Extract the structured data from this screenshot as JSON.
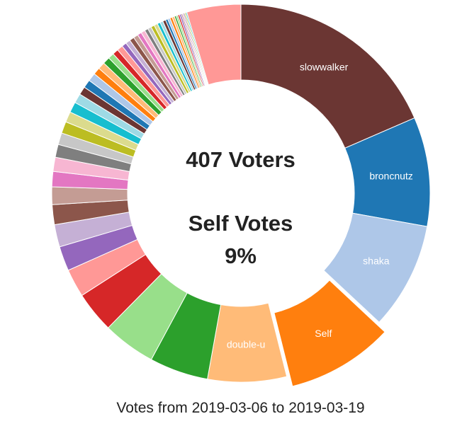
{
  "center": {
    "voters": "407 Voters",
    "self_votes_label": "Self Votes",
    "self_votes_pct": "9%"
  },
  "caption": "Votes from 2019-03-06 to 2019-03-19",
  "chart_data": {
    "type": "pie",
    "style": "donut",
    "exploded_slice": "Self",
    "slices": [
      {
        "label": "slowwalker",
        "value": 18.4,
        "color": "#6b3633"
      },
      {
        "label": "broncnutz",
        "value": 9.3,
        "color": "#1f77b4"
      },
      {
        "label": "shaka",
        "value": 9.1,
        "color": "#aec7e8"
      },
      {
        "label": "Self",
        "value": 9.1,
        "color": "#ff7f0e"
      },
      {
        "label": "double-u",
        "value": 6.7,
        "color": "#ffbb78"
      },
      {
        "label": "",
        "value": 5.0,
        "color": "#2ca02c"
      },
      {
        "label": "",
        "value": 4.5,
        "color": "#98df8a"
      },
      {
        "label": "",
        "value": 3.5,
        "color": "#d62728"
      },
      {
        "label": "",
        "value": 2.4,
        "color": "#ff9896"
      },
      {
        "label": "",
        "value": 2.1,
        "color": "#9467bd"
      },
      {
        "label": "",
        "value": 1.9,
        "color": "#c5b0d5"
      },
      {
        "label": "",
        "value": 1.7,
        "color": "#8c564b"
      },
      {
        "label": "",
        "value": 1.5,
        "color": "#c49c94"
      },
      {
        "label": "",
        "value": 1.3,
        "color": "#e377c2"
      },
      {
        "label": "",
        "value": 1.2,
        "color": "#f7b6d2"
      },
      {
        "label": "",
        "value": 1.1,
        "color": "#7f7f7f"
      },
      {
        "label": "",
        "value": 1.0,
        "color": "#c7c7c7"
      },
      {
        "label": "",
        "value": 1.0,
        "color": "#bcbd22"
      },
      {
        "label": "",
        "value": 0.9,
        "color": "#dbdb8d"
      },
      {
        "label": "",
        "value": 0.9,
        "color": "#17becf"
      },
      {
        "label": "",
        "value": 0.8,
        "color": "#9edae5"
      },
      {
        "label": "",
        "value": 0.7,
        "color": "#6b3633"
      },
      {
        "label": "",
        "value": 0.7,
        "color": "#1f77b4"
      },
      {
        "label": "",
        "value": 0.7,
        "color": "#aec7e8"
      },
      {
        "label": "",
        "value": 0.6,
        "color": "#ff7f0e"
      },
      {
        "label": "",
        "value": 0.6,
        "color": "#ffbb78"
      },
      {
        "label": "",
        "value": 0.6,
        "color": "#2ca02c"
      },
      {
        "label": "",
        "value": 0.5,
        "color": "#98df8a"
      },
      {
        "label": "",
        "value": 0.5,
        "color": "#d62728"
      },
      {
        "label": "",
        "value": 0.5,
        "color": "#ff9896"
      },
      {
        "label": "",
        "value": 0.4,
        "color": "#9467bd"
      },
      {
        "label": "",
        "value": 0.4,
        "color": "#c5b0d5"
      },
      {
        "label": "",
        "value": 0.4,
        "color": "#8c564b"
      },
      {
        "label": "",
        "value": 0.4,
        "color": "#c49c94"
      },
      {
        "label": "",
        "value": 0.35,
        "color": "#e377c2"
      },
      {
        "label": "",
        "value": 0.35,
        "color": "#f7b6d2"
      },
      {
        "label": "",
        "value": 0.3,
        "color": "#7f7f7f"
      },
      {
        "label": "",
        "value": 0.3,
        "color": "#c7c7c7"
      },
      {
        "label": "",
        "value": 0.3,
        "color": "#bcbd22"
      },
      {
        "label": "",
        "value": 0.3,
        "color": "#dbdb8d"
      },
      {
        "label": "",
        "value": 0.25,
        "color": "#17becf"
      },
      {
        "label": "",
        "value": 0.25,
        "color": "#9edae5"
      },
      {
        "label": "",
        "value": 0.25,
        "color": "#6b3633"
      },
      {
        "label": "",
        "value": 0.2,
        "color": "#1f77b4"
      },
      {
        "label": "",
        "value": 0.2,
        "color": "#aec7e8"
      },
      {
        "label": "",
        "value": 0.2,
        "color": "#ff7f0e"
      },
      {
        "label": "",
        "value": 0.2,
        "color": "#ffbb78"
      },
      {
        "label": "",
        "value": 0.15,
        "color": "#2ca02c"
      },
      {
        "label": "",
        "value": 0.15,
        "color": "#98df8a"
      },
      {
        "label": "",
        "value": 0.15,
        "color": "#d62728"
      },
      {
        "label": "",
        "value": 0.15,
        "color": "#9467bd"
      },
      {
        "label": "",
        "value": 0.1,
        "color": "#8c564b"
      },
      {
        "label": "",
        "value": 0.1,
        "color": "#e377c2"
      },
      {
        "label": "",
        "value": 0.1,
        "color": "#7f7f7f"
      },
      {
        "label": "",
        "value": 0.1,
        "color": "#bcbd22"
      },
      {
        "label": "",
        "value": 0.1,
        "color": "#17becf"
      },
      {
        "label": "",
        "value": 4.6,
        "color": "#ff9896"
      }
    ]
  }
}
